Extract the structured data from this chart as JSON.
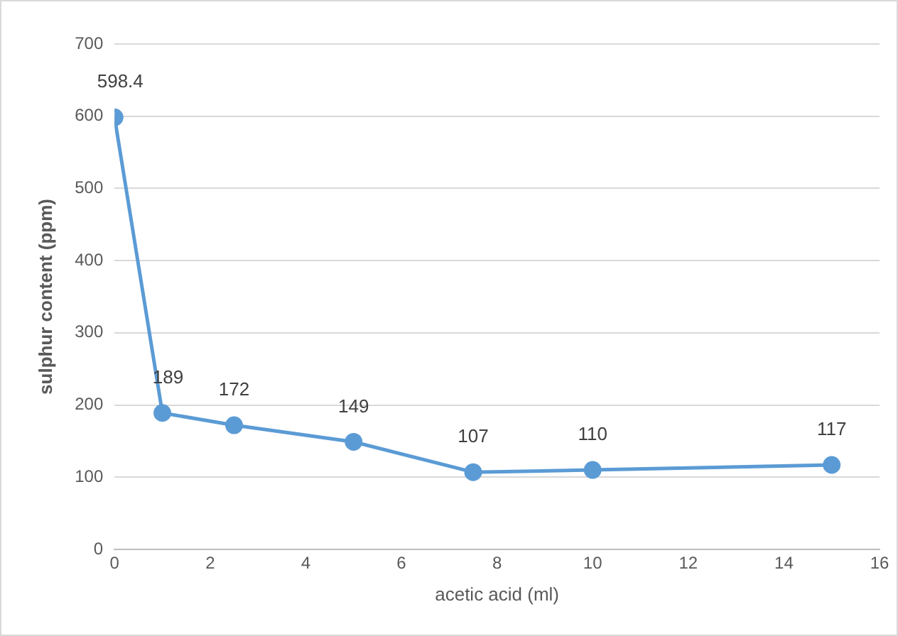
{
  "chart_data": {
    "type": "line",
    "xlabel": "acetic acid (ml)",
    "ylabel": "sulphur content (ppm)",
    "x": [
      0,
      1,
      2.5,
      5,
      7.5,
      10,
      15
    ],
    "series": [
      {
        "color": "#5b9bd5",
        "values": [
          598.4,
          189,
          172,
          149,
          107,
          110,
          117
        ]
      }
    ],
    "xlim": [
      0,
      16
    ],
    "xticks": [
      0,
      2,
      4,
      6,
      8,
      10,
      12,
      14,
      16
    ],
    "ylim": [
      0,
      700
    ],
    "yticks": [
      0,
      100,
      200,
      300,
      400,
      500,
      600,
      700
    ],
    "grid": "y",
    "legend": false,
    "marker": "circle",
    "line_style": "solid",
    "data_labels": true
  }
}
